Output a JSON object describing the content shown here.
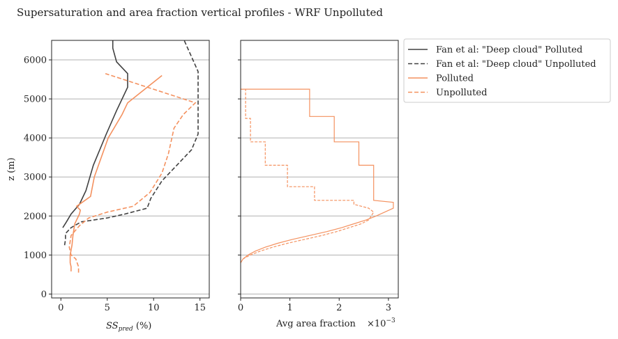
{
  "figure_title": "Supersaturation and area fraction vertical profiles - WRF Unpolluted",
  "colors": {
    "fan": "#404040",
    "wrf": "#f4915f",
    "grid": "#b0b0b0",
    "axis": "#222222"
  },
  "legend": {
    "placement": "outside-right-top",
    "entries": [
      {
        "label": "Fan et al: \"Deep cloud\" Polluted",
        "color": "#404040",
        "dash": "solid"
      },
      {
        "label": "Fan et al: \"Deep cloud\" Unpolluted",
        "color": "#404040",
        "dash": "dashed"
      },
      {
        "label": "Polluted",
        "color": "#f4915f",
        "dash": "solid"
      },
      {
        "label": "Unpolluted",
        "color": "#f4915f",
        "dash": "dashed"
      }
    ]
  },
  "chart_data": [
    {
      "type": "line",
      "xlabel": "SSpred (%)",
      "xlabel_main": "SS",
      "xlabel_sub": "pred",
      "xlabel_unit": " (%)",
      "ylabel": "z (m)",
      "xlim": [
        -1,
        16
      ],
      "ylim": [
        -100,
        6500
      ],
      "xticks": [
        0,
        5,
        10,
        15
      ],
      "yticks": [
        0,
        1000,
        2000,
        3000,
        4000,
        5000,
        6000
      ],
      "grid": "horizontal",
      "series": [
        {
          "name": "Fan et al: \"Deep cloud\" Polluted",
          "color": "#404040",
          "dash": "solid",
          "points": [
            [
              0.2,
              1700
            ],
            [
              0.6,
              1850
            ],
            [
              1.1,
              2050
            ],
            [
              2.0,
              2300
            ],
            [
              2.7,
              2650
            ],
            [
              3.5,
              3300
            ],
            [
              4.9,
              4100
            ],
            [
              6.0,
              4700
            ],
            [
              7.2,
              5300
            ],
            [
              7.2,
              5650
            ],
            [
              6.0,
              5950
            ],
            [
              5.6,
              6300
            ],
            [
              5.6,
              6500
            ]
          ]
        },
        {
          "name": "Fan et al: \"Deep cloud\" Unpolluted",
          "color": "#404040",
          "dash": "dashed",
          "points": [
            [
              0.4,
              1250
            ],
            [
              0.5,
              1400
            ],
            [
              0.5,
              1550
            ],
            [
              1.1,
              1700
            ],
            [
              2.2,
              1850
            ],
            [
              5.0,
              1950
            ],
            [
              6.9,
              2050
            ],
            [
              9.3,
              2200
            ],
            [
              9.7,
              2450
            ],
            [
              10.9,
              2900
            ],
            [
              12.5,
              3300
            ],
            [
              14.1,
              3700
            ],
            [
              14.8,
              4100
            ],
            [
              14.8,
              4700
            ],
            [
              14.8,
              5350
            ],
            [
              14.8,
              5700
            ],
            [
              13.3,
              6500
            ]
          ]
        },
        {
          "name": "Polluted",
          "color": "#f4915f",
          "dash": "solid",
          "points": [
            [
              1.1,
              580
            ],
            [
              1.1,
              700
            ],
            [
              1.0,
              800
            ],
            [
              1.0,
              1000
            ],
            [
              1.2,
              1250
            ],
            [
              1.3,
              1500
            ],
            [
              1.5,
              1800
            ],
            [
              2.0,
              2050
            ],
            [
              2.1,
              2150
            ],
            [
              1.7,
              2250
            ],
            [
              3.2,
              2500
            ],
            [
              3.6,
              3000
            ],
            [
              5.1,
              4000
            ],
            [
              6.6,
              4600
            ],
            [
              7.2,
              4900
            ],
            [
              10.9,
              5600
            ]
          ]
        },
        {
          "name": "Unpolluted",
          "color": "#f4915f",
          "dash": "dashed",
          "points": [
            [
              1.9,
              550
            ],
            [
              1.9,
              700
            ],
            [
              1.6,
              900
            ],
            [
              1.1,
              1000
            ],
            [
              0.9,
              1200
            ],
            [
              1.1,
              1500
            ],
            [
              2.0,
              1750
            ],
            [
              3.0,
              1950
            ],
            [
              5.0,
              2100
            ],
            [
              7.8,
              2250
            ],
            [
              9.6,
              2600
            ],
            [
              10.9,
              3100
            ],
            [
              11.6,
              3600
            ],
            [
              12.2,
              4250
            ],
            [
              13.2,
              4600
            ],
            [
              14.5,
              4900
            ],
            [
              4.8,
              5650
            ]
          ]
        }
      ]
    },
    {
      "type": "line",
      "xlabel": "Avg area fraction",
      "offset_text": "×10⁻³",
      "offset_base": "×10",
      "offset_exp": "−3",
      "xlim": [
        0,
        3.2
      ],
      "ylim": [
        -100,
        6500
      ],
      "xticks": [
        0,
        1,
        2,
        3
      ],
      "yticks": [
        0,
        1000,
        2000,
        3000,
        4000,
        5000,
        6000
      ],
      "grid": "horizontal",
      "series": [
        {
          "name": "Polluted",
          "color": "#f4915f",
          "dash": "solid",
          "step": true,
          "points": [
            [
              0,
              800
            ],
            [
              0.05,
              900
            ],
            [
              0.15,
              1000
            ],
            [
              0.3,
              1100
            ],
            [
              0.5,
              1200
            ],
            [
              0.75,
              1300
            ],
            [
              1.05,
              1400
            ],
            [
              1.4,
              1500
            ],
            [
              1.75,
              1600
            ],
            [
              2.05,
              1700
            ],
            [
              2.3,
              1800
            ],
            [
              2.55,
              1900
            ],
            [
              2.75,
              2000
            ],
            [
              3.1,
              2200
            ],
            [
              3.1,
              2350
            ],
            [
              2.7,
              2400
            ],
            [
              2.7,
              2800
            ],
            [
              2.7,
              3300
            ],
            [
              2.4,
              3300
            ],
            [
              2.4,
              3900
            ],
            [
              1.9,
              3900
            ],
            [
              1.9,
              4550
            ],
            [
              1.4,
              4550
            ],
            [
              1.4,
              5250
            ],
            [
              0,
              5250
            ]
          ]
        },
        {
          "name": "Unpolluted",
          "color": "#f4915f",
          "dash": "dashed",
          "step": true,
          "points": [
            [
              0,
              800
            ],
            [
              0.05,
              900
            ],
            [
              0.2,
              1000
            ],
            [
              0.4,
              1100
            ],
            [
              0.65,
              1200
            ],
            [
              0.95,
              1300
            ],
            [
              1.3,
              1400
            ],
            [
              1.65,
              1500
            ],
            [
              1.95,
              1600
            ],
            [
              2.2,
              1700
            ],
            [
              2.45,
              1800
            ],
            [
              2.6,
              1900
            ],
            [
              2.65,
              2000
            ],
            [
              2.7,
              2100
            ],
            [
              2.6,
              2200
            ],
            [
              2.3,
              2300
            ],
            [
              2.3,
              2400
            ],
            [
              1.5,
              2400
            ],
            [
              1.5,
              2750
            ],
            [
              0.95,
              2750
            ],
            [
              0.95,
              3300
            ],
            [
              0.5,
              3300
            ],
            [
              0.5,
              3900
            ],
            [
              0.2,
              3900
            ],
            [
              0.2,
              4500
            ],
            [
              0.1,
              4500
            ],
            [
              0.1,
              5250
            ],
            [
              0,
              5250
            ]
          ]
        }
      ]
    }
  ]
}
